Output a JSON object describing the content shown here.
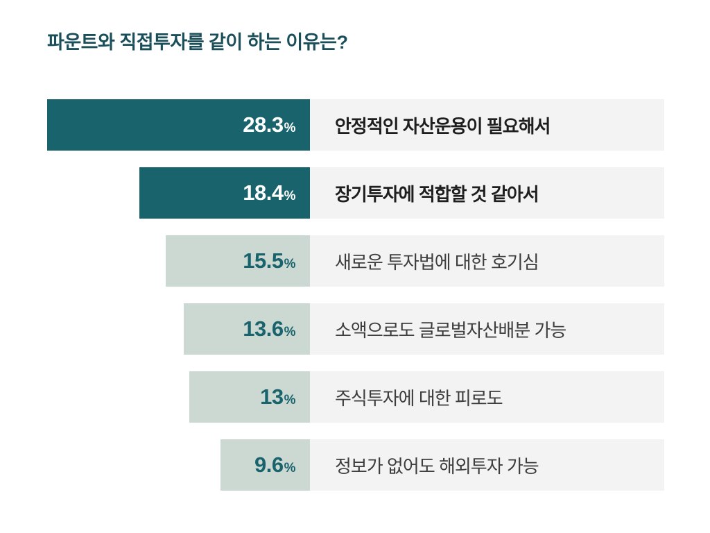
{
  "page": {
    "title": "파운트와 직접투자를 같이 하는 이유는?"
  },
  "chart_data": {
    "type": "bar",
    "orientation": "horizontal",
    "title": "파운트와 직접투자를 같이 하는 이유는?",
    "unit": "%",
    "categories": [
      "안정적인 자산운용이 필요해서",
      "장기투자에 적합할 것 같아서",
      "새로운 투자법에 대한 호기심",
      "소액으로도 글로벌자산배분 가능",
      "주식투자에 대한 피로도",
      "정보가 없어도 해외투자 가능"
    ],
    "values": [
      28.3,
      18.4,
      15.5,
      13.6,
      13,
      9.6
    ],
    "value_labels": [
      "28.3",
      "18.4",
      "15.5",
      "13.6",
      "13",
      "9.6"
    ],
    "emphasized": [
      true,
      true,
      false,
      false,
      false,
      false
    ],
    "value_range": [
      0,
      28.3
    ],
    "grid": false,
    "legend": false,
    "colors": {
      "bar_primary": "#19636d",
      "bar_secondary": "#ccd8d2",
      "row_background": "#f3f3f3",
      "title": "#1a4f5a",
      "value_on_primary": "#ffffff",
      "value_on_secondary": "#19636d"
    }
  }
}
